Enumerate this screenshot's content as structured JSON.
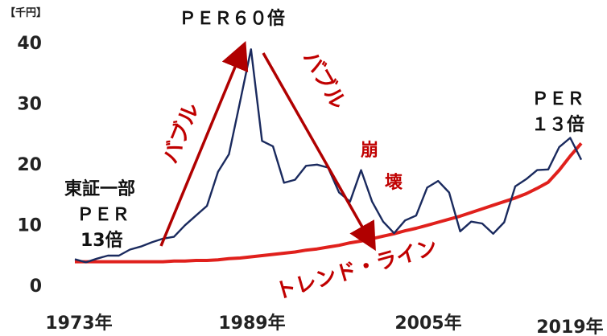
{
  "chart_data": {
    "type": "line",
    "unit_label": "【千円】",
    "x": [
      1973,
      1974,
      1975,
      1976,
      1977,
      1978,
      1979,
      1980,
      1981,
      1982,
      1983,
      1984,
      1985,
      1986,
      1987,
      1988,
      1989,
      1990,
      1991,
      1992,
      1993,
      1994,
      1995,
      1996,
      1997,
      1998,
      1999,
      2000,
      2001,
      2002,
      2003,
      2004,
      2005,
      2006,
      2007,
      2008,
      2009,
      2010,
      2011,
      2012,
      2013,
      2014,
      2015,
      2016,
      2017,
      2018,
      2019
    ],
    "series": [
      {
        "color": "#1a2a5e",
        "values": [
          4.3,
          3.8,
          4.4,
          4.9,
          4.9,
          5.9,
          6.4,
          7.1,
          7.7,
          8.0,
          9.9,
          11.5,
          13.1,
          18.7,
          21.6,
          30.2,
          38.9,
          23.8,
          22.9,
          16.9,
          17.4,
          19.7,
          19.9,
          19.4,
          15.3,
          13.8,
          19.0,
          13.8,
          10.5,
          8.6,
          10.7,
          11.5,
          16.1,
          17.2,
          15.3,
          8.9,
          10.5,
          10.2,
          8.5,
          10.4,
          16.3,
          17.5,
          19.0,
          19.1,
          22.8,
          24.3,
          20.7
        ]
      },
      {
        "color": "#e0201c",
        "values": [
          3.9,
          3.9,
          3.9,
          3.9,
          3.9,
          3.9,
          3.9,
          3.9,
          3.9,
          4.0,
          4.0,
          4.1,
          4.1,
          4.2,
          4.4,
          4.5,
          4.7,
          4.9,
          5.1,
          5.3,
          5.5,
          5.8,
          6.0,
          6.3,
          6.6,
          7.0,
          7.3,
          7.7,
          8.1,
          8.5,
          9.0,
          9.4,
          9.9,
          10.4,
          10.9,
          11.4,
          12.0,
          12.6,
          13.2,
          13.8,
          14.4,
          15.1,
          16.0,
          17.0,
          19.0,
          21.3,
          23.4
        ]
      }
    ],
    "x_tick_labels": [
      "1973年",
      "1989年",
      "2005年",
      "2019年"
    ],
    "x_tick_values": [
      1973,
      1989,
      2005,
      2019
    ],
    "y_ticks": [
      "0",
      "10",
      "20",
      "30",
      "40"
    ],
    "y_tick_values": [
      0,
      10,
      20,
      30,
      40
    ],
    "ylim": [
      0,
      40
    ],
    "xlim": [
      1973,
      2019
    ],
    "annotations": {
      "start": [
        "東証一部",
        "ＰＥＲ",
        "13倍"
      ],
      "peak": "ＰＥＲ６０倍",
      "end": [
        "ＰＥＲ",
        "１３倍"
      ],
      "bubble": "バブル",
      "collapse_1": "バブル",
      "collapse_2": "崩",
      "collapse_3": "壊",
      "trend": "トレンド・ライン"
    },
    "arrow_color": "#b00000"
  }
}
